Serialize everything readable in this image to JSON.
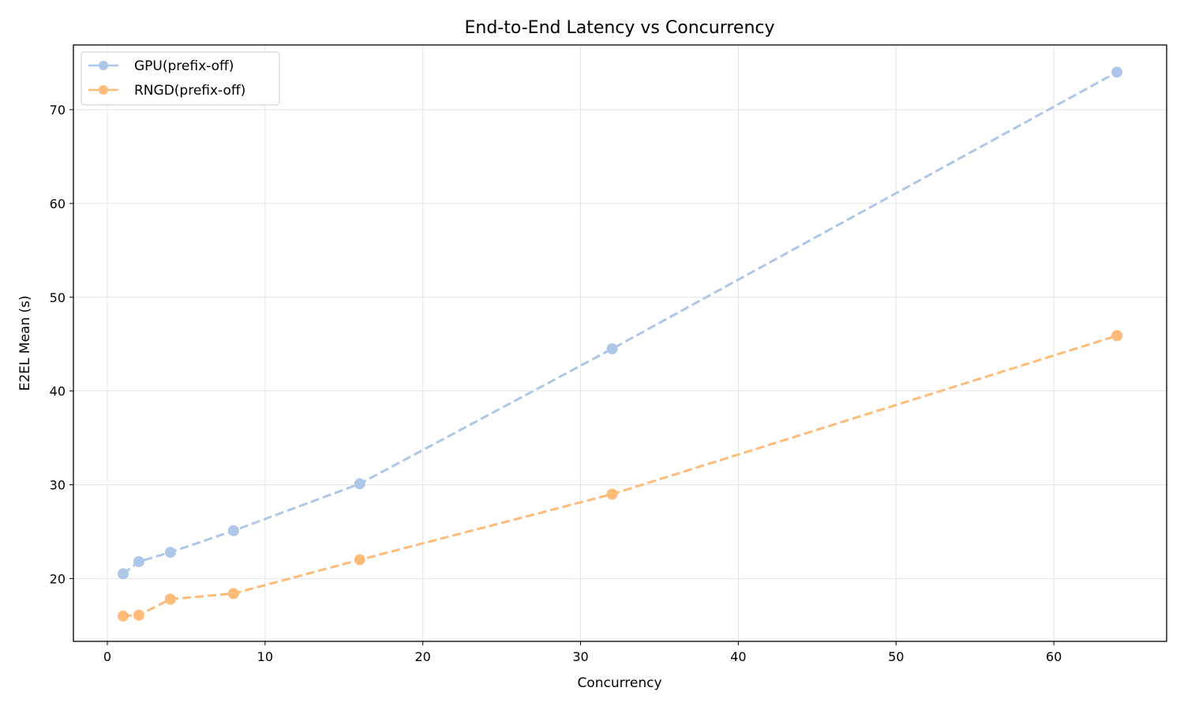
{
  "chart_data": {
    "type": "line",
    "title": "End-to-End Latency vs Concurrency",
    "xlabel": "Concurrency",
    "ylabel": "E2EL Mean (s)",
    "x": [
      1,
      2,
      4,
      8,
      16,
      32,
      64
    ],
    "series": [
      {
        "name": "GPU(prefix-off)",
        "color": "#aec7e8",
        "linestyle": "dashed",
        "marker": "circle",
        "values": [
          20.5,
          21.8,
          22.8,
          25.1,
          30.1,
          44.5,
          74.0
        ]
      },
      {
        "name": "RNGD(prefix-off)",
        "color": "#ffbb78",
        "linestyle": "dashed",
        "marker": "circle",
        "values": [
          16.0,
          16.1,
          17.8,
          18.4,
          22.0,
          29.0,
          45.9
        ]
      }
    ],
    "xlim": [
      -2.15,
      67.15
    ],
    "ylim": [
      13.3,
      76.9
    ],
    "xticks": [
      0,
      10,
      20,
      30,
      40,
      50,
      60
    ],
    "yticks": [
      20,
      30,
      40,
      50,
      60,
      70
    ],
    "grid": true,
    "legend_position": "upper left"
  }
}
